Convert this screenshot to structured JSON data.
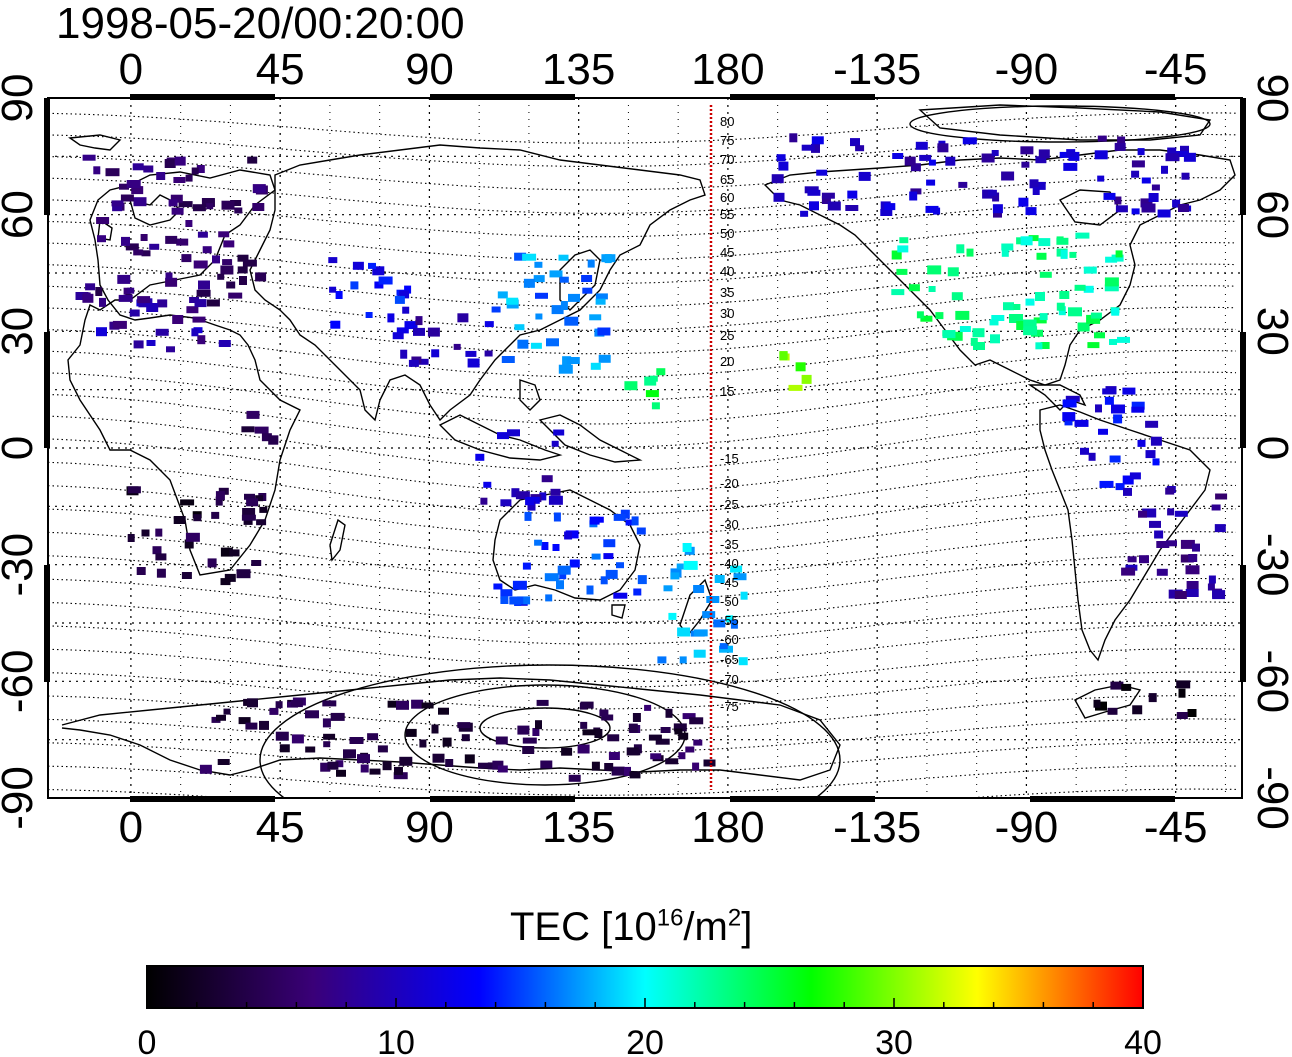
{
  "timestamp": "1998-05-20/00:20:00",
  "top_lon_ticks": [
    "0",
    "45",
    "90",
    "135",
    "180",
    "-135",
    "-90",
    "-45"
  ],
  "bottom_lon_ticks": [
    "0",
    "45",
    "90",
    "135",
    "180",
    "-135",
    "-90",
    "-45"
  ],
  "left_lat_ticks": [
    "90",
    "60",
    "30",
    "0",
    "-30",
    "-60",
    "-90"
  ],
  "right_lat_ticks": [
    "90",
    "60",
    "30",
    "0",
    "-30",
    "-60",
    "-90"
  ],
  "colorbar": {
    "title_prefix": "TEC  [10",
    "title_exp1": "16",
    "title_mid": "/m",
    "title_exp2": "2",
    "title_suffix": "]",
    "ticks": [
      "0",
      "10",
      "20",
      "30",
      "40"
    ],
    "range": [
      0,
      40
    ],
    "colors": [
      "#000000",
      "#3a0078",
      "#0000ff",
      "#00ffff",
      "#00ff00",
      "#ffff00",
      "#ff0000"
    ]
  },
  "mlat_labels": [
    "80",
    "75",
    "70",
    "65",
    "60",
    "55",
    "50",
    "45",
    "40",
    "35",
    "30",
    "25",
    "20",
    "15",
    "-15",
    "-20",
    "-25",
    "-30",
    "-35",
    "-40",
    "-45",
    "-50",
    "-55",
    "-60",
    "-65",
    "-70",
    "-75"
  ],
  "meridian_color": "#cc0000",
  "chart_data": {
    "type": "heatmap",
    "title": "1998-05-20/00:20:00",
    "xlabel": "",
    "ylabel": "",
    "xlim_lon": [
      -25,
      335
    ],
    "ylim": [
      -90,
      90
    ],
    "value_label": "TEC  [10^16/m^2]",
    "value_range": [
      0,
      40
    ],
    "grid": true,
    "regions": [
      {
        "lon": [
          -15,
          40
        ],
        "lat": [
          35,
          75
        ],
        "tec": 6
      },
      {
        "lon": [
          -15,
          30
        ],
        "lat": [
          25,
          40
        ],
        "tec": 9
      },
      {
        "lon": [
          35,
          45
        ],
        "lat": [
          0,
          15
        ],
        "tec": 4
      },
      {
        "lon": [
          0,
          40
        ],
        "lat": [
          -35,
          -10
        ],
        "tec": 3
      },
      {
        "lon": [
          60,
          85
        ],
        "lat": [
          30,
          50
        ],
        "tec": 13
      },
      {
        "lon": [
          80,
          110
        ],
        "lat": [
          20,
          35
        ],
        "tec": 10
      },
      {
        "lon": [
          110,
          145
        ],
        "lat": [
          20,
          50
        ],
        "tec": 17
      },
      {
        "lon": [
          150,
          165
        ],
        "lat": [
          10,
          20
        ],
        "tec": 24
      },
      {
        "lon": [
          105,
          130
        ],
        "lat": [
          -15,
          5
        ],
        "tec": 10
      },
      {
        "lon": [
          110,
          155
        ],
        "lat": [
          -40,
          -15
        ],
        "tec": 14
      },
      {
        "lon": [
          160,
          185
        ],
        "lat": [
          -55,
          -25
        ],
        "tec": 18
      },
      {
        "lon": [
          195,
          210
        ],
        "lat": [
          15,
          25
        ],
        "tec": 30
      },
      {
        "lon": [
          230,
          300
        ],
        "lat": [
          25,
          55
        ],
        "tec": 23
      },
      {
        "lon": [
          195,
          320
        ],
        "lat": [
          60,
          80
        ],
        "tec": 10
      },
      {
        "lon": [
          280,
          310
        ],
        "lat": [
          -10,
          15
        ],
        "tec": 12
      },
      {
        "lon": [
          300,
          330
        ],
        "lat": [
          -40,
          -10
        ],
        "tec": 8
      },
      {
        "lon": [
          20,
          175
        ],
        "lat": [
          -85,
          -65
        ],
        "tec": 4
      },
      {
        "lon": [
          290,
          320
        ],
        "lat": [
          -70,
          -60
        ],
        "tec": 2
      }
    ]
  }
}
